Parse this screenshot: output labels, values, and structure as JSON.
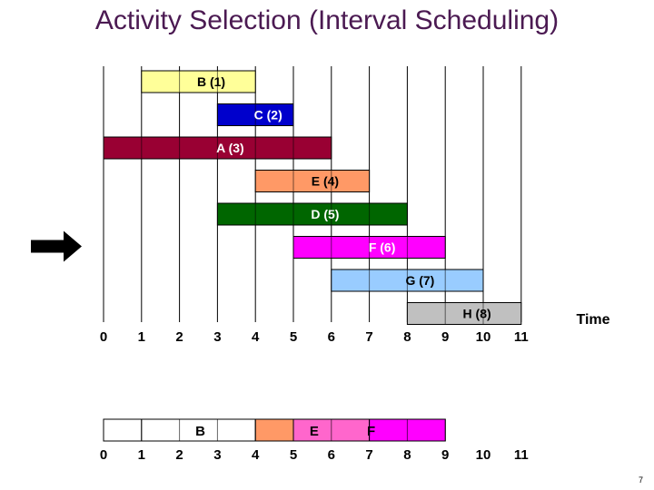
{
  "title": "Activity Selection (Interval Scheduling)",
  "time_label": "Time",
  "slide_number": "7",
  "axis_ticks": [
    "0",
    "1",
    "2",
    "3",
    "4",
    "5",
    "6",
    "7",
    "8",
    "9",
    "10",
    "11"
  ],
  "colors": {
    "B": "#ffff99",
    "C": "#0000cc",
    "A": "#990033",
    "E": "#ff9966",
    "D": "#006600",
    "F": "#ff00ff",
    "G": "#99ccff",
    "H": "#c0c0c0"
  },
  "activities": [
    {
      "label": "B (1)",
      "start": 1,
      "end": 4,
      "color": "#ffff99",
      "text_color": "#000000"
    },
    {
      "label": "C (2)",
      "start": 3,
      "end": 5,
      "color": "#0000cc",
      "text_color": "#ffffff"
    },
    {
      "label": "A (3)",
      "start": 0,
      "end": 6,
      "color": "#990033",
      "text_color": "#ffffff"
    },
    {
      "label": "E (4)",
      "start": 4,
      "end": 7,
      "color": "#ff9966",
      "text_color": "#000000"
    },
    {
      "label": "D (5)",
      "start": 3,
      "end": 8,
      "color": "#006600",
      "text_color": "#ffffff"
    },
    {
      "label": "F (6)",
      "start": 5,
      "end": 9,
      "color": "#ff00ff",
      "text_color": "#ffffff"
    },
    {
      "label": "G (7)",
      "start": 6,
      "end": 10,
      "color": "#99ccff",
      "text_color": "#000000"
    },
    {
      "label": "H (8)",
      "start": 8,
      "end": 11,
      "color": "#c0c0c0",
      "text_color": "#000000"
    }
  ],
  "current_activity_index": 5,
  "selection": [
    {
      "label": "B",
      "start": 1,
      "end": 4,
      "color": "#ffffff",
      "text_color": "#000000"
    },
    {
      "label": "E",
      "start": 4,
      "end": 5,
      "color": "#ff9966",
      "text_color": "#000000"
    },
    {
      "label": "E",
      "start": 5,
      "end": 7,
      "color": "#ff66cc",
      "text_color": "#000000"
    },
    {
      "label": "F",
      "start": 7,
      "end": 9,
      "color": "#ff00ff",
      "text_color": "#ffffff"
    }
  ],
  "selection_labels": [
    {
      "text": "B",
      "at": 2.5
    },
    {
      "text": "E",
      "at": 5.5
    },
    {
      "text": "F",
      "at": 7
    }
  ],
  "selection_row_range": [
    0,
    9
  ]
}
